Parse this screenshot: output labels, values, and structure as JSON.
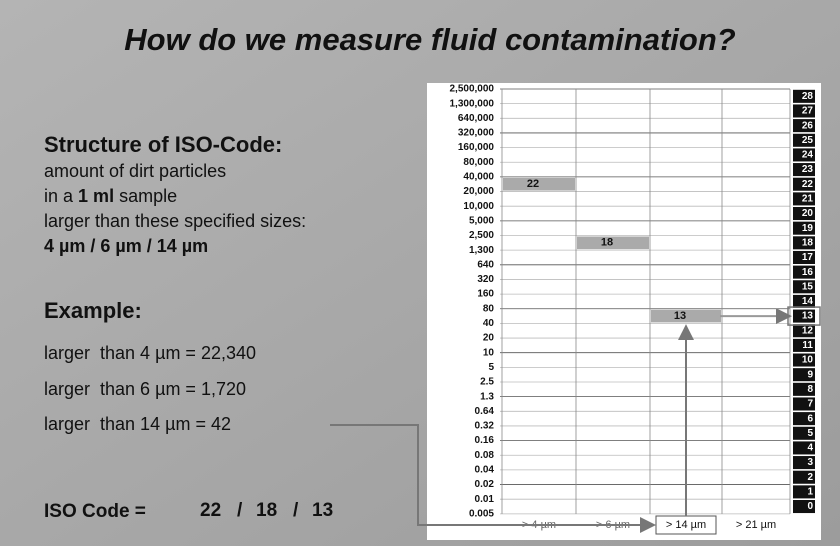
{
  "title": "How do we measure fluid contamination?",
  "structure": {
    "heading": "Structure of ISO-Code:",
    "line1": "amount of dirt particles",
    "line2": [
      "in a",
      "1 ml",
      "sample"
    ],
    "line3": "larger than these specified sizes:",
    "line4": "4 µm / 6 µm / 14 µm"
  },
  "example": {
    "heading": "Example:",
    "lines": [
      "larger  than 4 µm = 22,340",
      "larger  than 6 µm = 1,720",
      "larger  than 14 µm = 42"
    ]
  },
  "iso_code": {
    "label": "ISO Code =",
    "codes": [
      "22",
      "18",
      "13"
    ],
    "separator": "/"
  },
  "table": {
    "scale": [
      "2,500,000",
      "1,300,000",
      "640,000",
      "320,000",
      "160,000",
      "80,000",
      "40,000",
      "20,000",
      "10,000",
      "5,000",
      "2,500",
      "1,300",
      "640",
      "320",
      "160",
      "80",
      "40",
      "20",
      "10",
      "5",
      "2.5",
      "1.3",
      "0.64",
      "0.32",
      "0.16",
      "0.08",
      "0.04",
      "0.02",
      "0.01",
      "0.005"
    ],
    "codes": [
      28,
      27,
      26,
      25,
      24,
      23,
      22,
      21,
      20,
      19,
      18,
      17,
      16,
      15,
      14,
      13,
      12,
      11,
      10,
      9,
      8,
      7,
      6,
      5,
      4,
      3,
      2,
      1,
      0
    ],
    "columns": [
      {
        "label": "> 4 µm",
        "code": 22
      },
      {
        "label": "> 6 µm",
        "code": 18
      },
      {
        "label": "> 14 µm",
        "code": 13
      },
      {
        "label": "> 21 µm",
        "code": null
      }
    ]
  }
}
